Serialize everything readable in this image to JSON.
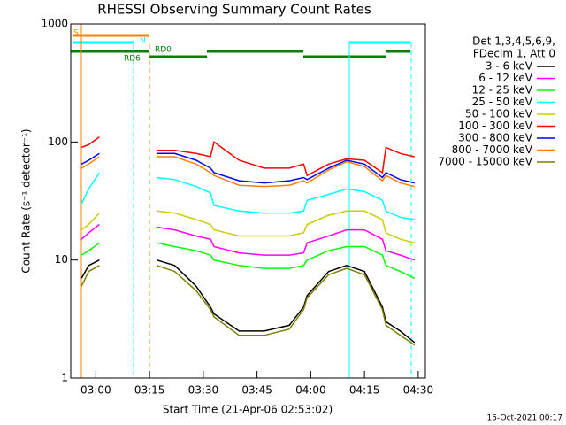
{
  "chart_data": {
    "type": "line",
    "title": "RHESSI Observing Summary Count Rates",
    "xlabel": "Start Time (21-Apr-06 02:53:02)",
    "ylabel": "Count Rate (s⁻¹ detector⁻¹)",
    "legend_header": [
      "Det 1,3,4,5,6,9,",
      "FDecim 1, Att 0"
    ],
    "footer": "15-Oct-2021 00:17",
    "annotations": [
      "S",
      "N",
      "RD0",
      "RD6"
    ],
    "log_y": true,
    "xlim": [
      "02:53",
      "04:32"
    ],
    "xticks": [
      "03:00",
      "03:15",
      "03:30",
      "03:45",
      "04:00",
      "04:15",
      "04:30"
    ],
    "ylim": [
      1,
      1000
    ],
    "yticks": [
      1,
      10,
      100,
      1000
    ],
    "x": [
      "02:56",
      "02:58",
      "03:01",
      "03:10",
      "03:17",
      "03:22",
      "03:28",
      "03:32",
      "03:33",
      "03:40",
      "03:47",
      "03:54",
      "03:58",
      "03:59",
      "04:05",
      "04:10",
      "04:15",
      "04:20",
      "04:21",
      "04:25",
      "04:29"
    ],
    "series": [
      {
        "name": "3 - 6 keV",
        "color": "#000000",
        "values": [
          7,
          9,
          10,
          null,
          10,
          9,
          6,
          4,
          3.5,
          2.5,
          2.5,
          2.8,
          4,
          5,
          8,
          9,
          8,
          4,
          3,
          2.5,
          2
        ]
      },
      {
        "name": "6 - 12 keV",
        "color": "#ff00ff",
        "values": [
          15,
          17,
          20,
          null,
          19,
          18,
          16,
          15,
          13,
          11.5,
          11,
          11,
          11.5,
          14,
          16,
          18,
          18,
          15,
          12,
          11,
          10
        ]
      },
      {
        "name": "12 - 25 keV",
        "color": "#00ff00",
        "values": [
          11,
          12,
          14,
          null,
          14,
          13,
          12,
          11,
          10,
          9,
          8.5,
          8.5,
          9,
          10,
          12,
          13,
          13,
          11,
          9,
          8,
          7
        ]
      },
      {
        "name": "25 - 50 keV",
        "color": "#00ffff",
        "values": [
          30,
          40,
          55,
          null,
          50,
          48,
          42,
          37,
          29,
          26,
          25,
          25,
          26,
          32,
          36,
          40,
          38,
          32,
          26,
          23,
          22
        ]
      },
      {
        "name": "50 - 100 keV",
        "color": "#cccc00",
        "values": [
          18,
          20,
          25,
          null,
          26,
          25,
          22,
          20,
          18,
          16,
          16,
          16,
          17,
          20,
          24,
          26,
          26,
          22,
          17,
          15,
          14
        ]
      },
      {
        "name": "100 - 300 keV",
        "color": "#ff0000",
        "values": [
          90,
          95,
          110,
          null,
          85,
          85,
          80,
          75,
          100,
          70,
          60,
          60,
          65,
          52,
          65,
          72,
          70,
          55,
          90,
          80,
          75
        ]
      },
      {
        "name": "300 - 800 keV",
        "color": "#0000ff",
        "values": [
          65,
          70,
          80,
          null,
          80,
          80,
          70,
          60,
          55,
          47,
          45,
          47,
          50,
          48,
          60,
          70,
          65,
          50,
          55,
          48,
          45
        ]
      },
      {
        "name": "800 - 7000 keV",
        "color": "#ff8000",
        "values": [
          60,
          65,
          75,
          null,
          75,
          75,
          65,
          55,
          52,
          43,
          42,
          43,
          47,
          45,
          58,
          68,
          62,
          47,
          52,
          45,
          42
        ]
      },
      {
        "name": "7000 - 15000 keV",
        "color": "#808000",
        "values": [
          6,
          8,
          9,
          null,
          9,
          8,
          5.5,
          3.8,
          3.3,
          2.3,
          2.3,
          2.6,
          3.8,
          4.8,
          7.5,
          8.5,
          7.5,
          3.8,
          2.8,
          2.3,
          1.9
        ]
      }
    ]
  }
}
